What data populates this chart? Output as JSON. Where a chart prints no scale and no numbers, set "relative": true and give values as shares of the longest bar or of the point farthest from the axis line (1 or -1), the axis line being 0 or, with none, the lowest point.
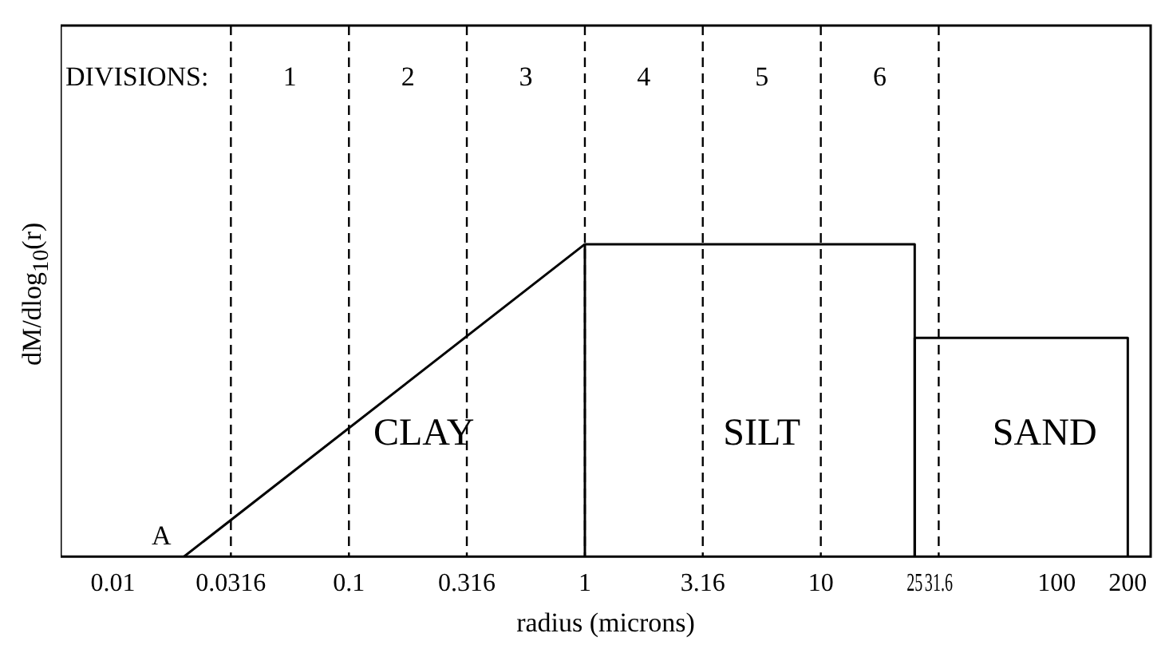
{
  "chart_data": {
    "type": "line",
    "relative": true,
    "log": "x",
    "xlabel": "radius (microns)",
    "ylabel": "dM/dlog$_{10}$(r)",
    "xlim": [
      0.006,
      250
    ],
    "xticks": [
      0.01,
      0.0316,
      0.1,
      0.316,
      1,
      3.16,
      10,
      25,
      31.6,
      100,
      200
    ],
    "series": [
      {
        "color": "#000000",
        "x": [
          0.02,
          1
        ],
        "values": [
          0,
          1
        ]
      },
      {
        "color": "#000000",
        "x": [
          1,
          1,
          25,
          25
        ],
        "values": [
          0,
          1,
          1,
          0
        ]
      },
      {
        "color": "#000000",
        "x": [
          25,
          25,
          200,
          200
        ],
        "values": [
          0,
          0.7,
          0.7,
          0
        ]
      }
    ],
    "ref_lines": [
      {
        "axis": "x",
        "value": 0.0316,
        "line_style": "dashed",
        "color": "#000000"
      },
      {
        "axis": "x",
        "value": 0.1,
        "line_style": "dashed",
        "color": "#000000"
      },
      {
        "axis": "x",
        "value": 0.316,
        "line_style": "dashed",
        "color": "#000000"
      },
      {
        "axis": "x",
        "value": 1,
        "line_style": "dashed",
        "color": "#000000"
      },
      {
        "axis": "x",
        "value": 3.16,
        "line_style": "dashed",
        "color": "#000000"
      },
      {
        "axis": "x",
        "value": 10,
        "line_style": "dashed",
        "color": "#000000"
      },
      {
        "axis": "x",
        "value": 31.6,
        "line_style": "dashed",
        "color": "#000000"
      }
    ],
    "annotations": [
      "DIVISIONS:",
      "1",
      "2",
      "3",
      "4",
      "5",
      "6",
      "CLAY",
      "SILT",
      "SAND",
      "A"
    ],
    "grid": false,
    "legend": false,
    "marker": "none",
    "line_style": "solid"
  }
}
